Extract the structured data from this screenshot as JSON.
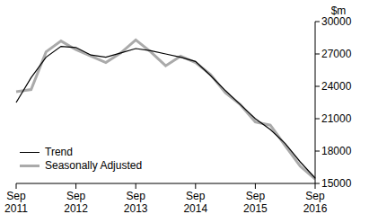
{
  "chart_data": {
    "type": "line",
    "y_label": "$m",
    "categories": [
      "Sep 2011",
      null,
      null,
      null,
      "Sep 2012",
      null,
      null,
      null,
      "Sep 2013",
      null,
      null,
      null,
      "Sep 2014",
      null,
      null,
      null,
      "Sep 2015",
      null,
      null,
      null,
      "Sep 2016"
    ],
    "series": [
      {
        "name": "Trend",
        "color": "#000000",
        "line_style": "solid",
        "values": [
          22500,
          24800,
          26700,
          27700,
          27600,
          26900,
          26700,
          27100,
          27500,
          27300,
          27000,
          26700,
          26300,
          25000,
          23600,
          22300,
          21000,
          20000,
          18700,
          17000,
          15500
        ]
      },
      {
        "name": "Seasonally Adjusted",
        "color": "#aaaaaa",
        "line_style": "solid",
        "values": [
          23500,
          23700,
          27200,
          28200,
          27400,
          26800,
          26200,
          27100,
          28300,
          27200,
          25900,
          26800,
          26200,
          25100,
          23400,
          22300,
          20700,
          20400,
          18500,
          16600,
          15400
        ]
      }
    ],
    "ylim": [
      15000,
      30000
    ],
    "yticks": [
      15000,
      18000,
      21000,
      24000,
      27000,
      30000
    ],
    "grid": false,
    "legend": "lower left"
  }
}
